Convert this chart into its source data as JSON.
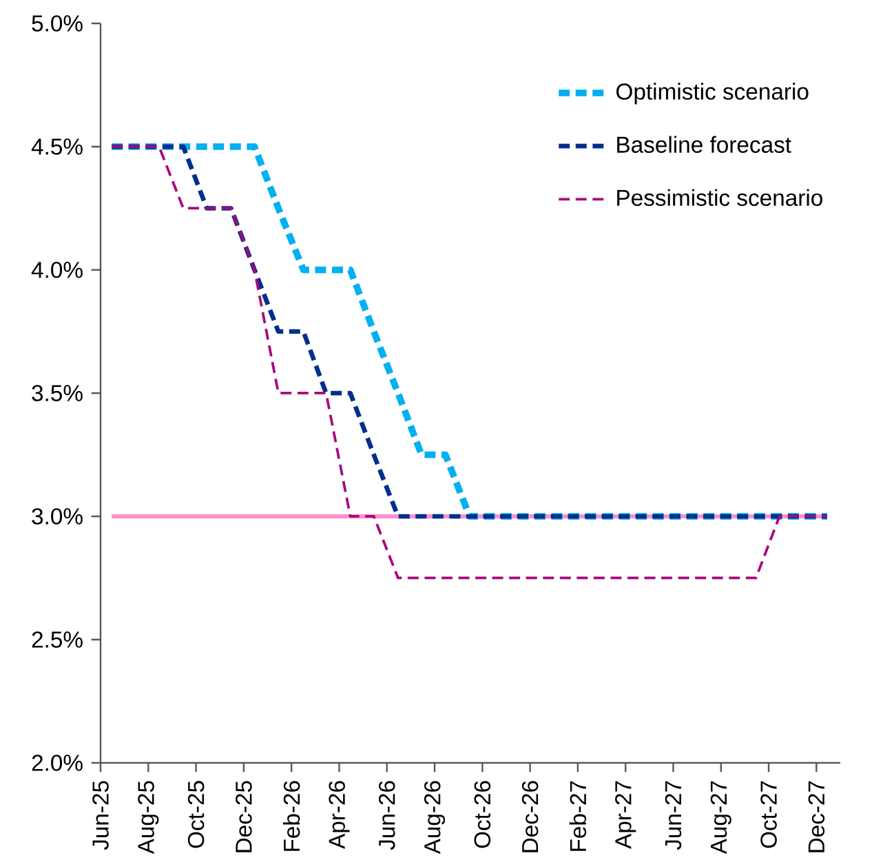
{
  "chart_data": {
    "type": "line",
    "x": [
      "2025-06-15",
      "2025-07-15",
      "2025-08-15",
      "2025-09-15",
      "2025-10-15",
      "2025-11-15",
      "2025-12-15",
      "2026-01-15",
      "2026-02-15",
      "2026-03-15",
      "2026-04-15",
      "2026-05-15",
      "2026-06-15",
      "2026-07-15",
      "2026-08-15",
      "2026-09-15",
      "2026-10-15",
      "2026-11-15",
      "2026-12-15",
      "2027-01-15",
      "2027-02-15",
      "2027-03-15",
      "2027-04-15",
      "2027-05-15",
      "2027-06-15",
      "2027-07-15",
      "2027-08-15",
      "2027-09-15",
      "2027-10-15",
      "2027-11-15",
      "2027-12-15"
    ],
    "series": [
      {
        "name": "Optimistic scenario",
        "color": "#00b0f0",
        "values": [
          4.5,
          4.5,
          4.5,
          4.5,
          4.5,
          4.5,
          4.5,
          4.25,
          4.0,
          4.0,
          4.0,
          3.75,
          3.5,
          3.25,
          3.25,
          3.0,
          3.0,
          3.0,
          3.0,
          3.0,
          3.0,
          3.0,
          3.0,
          3.0,
          3.0,
          3.0,
          3.0,
          3.0,
          3.0,
          3.0,
          3.0
        ]
      },
      {
        "name": "Baseline forecast",
        "color": "#002f8e",
        "values": [
          4.5,
          4.5,
          4.5,
          4.5,
          4.25,
          4.25,
          4.0,
          3.75,
          3.75,
          3.5,
          3.5,
          3.25,
          3.0,
          3.0,
          3.0,
          3.0,
          3.0,
          3.0,
          3.0,
          3.0,
          3.0,
          3.0,
          3.0,
          3.0,
          3.0,
          3.0,
          3.0,
          3.0,
          3.0,
          3.0,
          3.0
        ]
      },
      {
        "name": "Pessimistic scenario",
        "color": "#a8087e",
        "values": [
          4.5,
          4.5,
          4.5,
          4.25,
          4.25,
          4.25,
          4.0,
          3.5,
          3.5,
          3.5,
          3.0,
          3.0,
          2.75,
          2.75,
          2.75,
          2.75,
          2.75,
          2.75,
          2.75,
          2.75,
          2.75,
          2.75,
          2.75,
          2.75,
          2.75,
          2.75,
          2.75,
          2.75,
          3.0,
          3.0,
          3.0
        ]
      }
    ],
    "xlim": [
      "2025-06-01",
      "2028-01-01"
    ],
    "xticks": [
      {
        "value": "2025-06-01",
        "label": "Jun-25"
      },
      {
        "value": "2025-08-01",
        "label": "Aug-25"
      },
      {
        "value": "2025-10-01",
        "label": "Oct-25"
      },
      {
        "value": "2025-12-01",
        "label": "Dec-25"
      },
      {
        "value": "2026-02-01",
        "label": "Feb-26"
      },
      {
        "value": "2026-04-01",
        "label": "Apr-26"
      },
      {
        "value": "2026-06-01",
        "label": "Jun-26"
      },
      {
        "value": "2026-08-01",
        "label": "Aug-26"
      },
      {
        "value": "2026-10-01",
        "label": "Oct-26"
      },
      {
        "value": "2026-12-01",
        "label": "Dec-26"
      },
      {
        "value": "2027-02-01",
        "label": "Feb-27"
      },
      {
        "value": "2027-04-01",
        "label": "Apr-27"
      },
      {
        "value": "2027-06-01",
        "label": "Jun-27"
      },
      {
        "value": "2027-08-01",
        "label": "Aug-27"
      },
      {
        "value": "2027-10-01",
        "label": "Oct-27"
      },
      {
        "value": "2027-12-01",
        "label": "Dec-27"
      }
    ],
    "ylim": [
      2.0,
      5.0
    ],
    "yticks": [
      {
        "value": 2.0,
        "label": "2.0%"
      },
      {
        "value": 2.5,
        "label": "2.5%"
      },
      {
        "value": 3.0,
        "label": "3.0%"
      },
      {
        "value": 3.5,
        "label": "3.5%"
      },
      {
        "value": 4.0,
        "label": "4.0%"
      },
      {
        "value": 4.5,
        "label": "4.5%"
      },
      {
        "value": 5.0,
        "label": "5.0%"
      }
    ],
    "ref_lines": [
      {
        "axis": "y",
        "value": 3.0,
        "color": "#ff8fcb",
        "line_style": "solid"
      }
    ],
    "legend": "top right",
    "grid": false,
    "marker": "none",
    "line_style": "dashed"
  }
}
